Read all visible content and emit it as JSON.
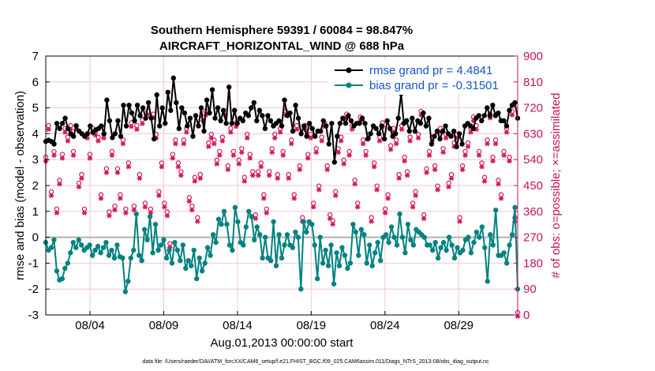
{
  "chart_data": {
    "type": "line",
    "title": "Southern Hemisphere 59391 / 60084 = 98.847%",
    "subtitle": "AIRCRAFT_HORIZONTAL_WIND @ 688 hPa",
    "xlabel": "Aug.01,2013 00:00:00 start",
    "ylabel": "rmse and bias (model - observation)",
    "y2label": "# of obs: o=possible; ×=assimilated",
    "footnote": "data file: /Users/raeder/DAI/ATM_forcXX/CAM6_setup/f.e21.FHIST_BGC.f09_025.CAM6assim.011/Diags_NTrS_2013-08/obs_diag_output.nc",
    "xlim": [
      1,
      33
    ],
    "ylim": [
      -3,
      7
    ],
    "y2lim": [
      0,
      900
    ],
    "x_ticks": [
      4,
      9,
      14,
      19,
      24,
      29
    ],
    "x_tick_labels": [
      "08/04",
      "08/09",
      "08/14",
      "08/19",
      "08/24",
      "08/29"
    ],
    "y_ticks": [
      -3,
      -2,
      -1,
      0,
      1,
      2,
      3,
      4,
      5,
      6,
      7
    ],
    "y2_ticks": [
      0,
      90,
      180,
      270,
      360,
      450,
      540,
      630,
      720,
      810,
      900
    ],
    "grid": true,
    "legend_position": "top-right",
    "colors": {
      "rmse": "#000000",
      "bias": "#00827f",
      "obs": "#d4145a",
      "zero_line": "#b0b0b0",
      "grid": "#f2c8d0",
      "axis2": "#c4145a",
      "legend_text": "#1155cc"
    },
    "series": [
      {
        "name": "rmse grand pr = 4.4841",
        "values": [
          3.7,
          3.75,
          3.7,
          3.6,
          4.4,
          4.2,
          4.4,
          4.6,
          4.2,
          4.0,
          3.9,
          4.3,
          4.1,
          4.0,
          3.9,
          4.0,
          4.3,
          4.05,
          4.15,
          4.2,
          4.3,
          4.0,
          5.3,
          4.5,
          3.85,
          4.0,
          4.5,
          3.9,
          5.1,
          4.3,
          5.1,
          4.8,
          4.5,
          5.1,
          4.7,
          5.0,
          4.6,
          5.2,
          4.6,
          3.8,
          5.5,
          4.3,
          5.0,
          4.4,
          5.6,
          4.9,
          6.15,
          5.2,
          4.2,
          5.0,
          4.8,
          4.3,
          4.6,
          3.9,
          4.7,
          4.3,
          5.0,
          4.1,
          5.3,
          4.8,
          5.7,
          4.6,
          5.0,
          4.5,
          4.9,
          4.4,
          5.8,
          4.4,
          4.9,
          4.4,
          4.6,
          4.5,
          4.8,
          4.7,
          5.0,
          5.2,
          4.5,
          4.9,
          4.7,
          4.2,
          4.7,
          4.5,
          4.3,
          4.4,
          4.5,
          4.3,
          5.3,
          4.7,
          4.8,
          4.1,
          5.1,
          4.6,
          4.0,
          4.3,
          3.9,
          4.4,
          4.2,
          3.9,
          4.1,
          4.1,
          4.5,
          4.3,
          3.6,
          4.4,
          2.9,
          3.9,
          4.4,
          4.6,
          4.4,
          4.7,
          4.5,
          4.3,
          4.4,
          4.4,
          4.6,
          4.4,
          3.8,
          4.0,
          4.3,
          4.2,
          4.0,
          4.3,
          3.8,
          4.5,
          4.2,
          3.9,
          4.0,
          4.6,
          5.55,
          4.4,
          4.5,
          4.1,
          4.6,
          4.1,
          4.5,
          4.4,
          4.8,
          4.3,
          4.6,
          3.6,
          3.9,
          4.1,
          3.8,
          4.1,
          4.3,
          4.0,
          3.9,
          4.1,
          3.5,
          4.0,
          3.6,
          4.3,
          4.4,
          4.3,
          4.2,
          4.6,
          4.7,
          4.5,
          4.7,
          5.0,
          4.7,
          5.1,
          4.7,
          4.8,
          4.5,
          4.5,
          4.3,
          4.9,
          5.1,
          5.2,
          4.6
        ]
      },
      {
        "name": "bias grand pr = -0.31501",
        "values": [
          -0.2,
          -0.5,
          -0.4,
          -0.1,
          -1.3,
          -1.65,
          -1.6,
          -1.2,
          -1.0,
          -0.6,
          -0.2,
          -0.4,
          -0.1,
          -0.3,
          -0.5,
          -0.4,
          -0.3,
          -0.7,
          -0.5,
          -0.35,
          -0.6,
          -0.4,
          -0.2,
          -0.7,
          -0.5,
          -0.8,
          -0.3,
          -0.75,
          -0.8,
          -2.1,
          -1.7,
          -0.8,
          -0.5,
          0.9,
          -0.7,
          -0.9,
          0.3,
          -0.1,
          0.8,
          -0.6,
          0.5,
          -0.5,
          -0.3,
          -0.1,
          -0.8,
          -0.5,
          -1.0,
          -0.2,
          -0.5,
          -0.9,
          -0.3,
          -1.2,
          -0.9,
          -1.1,
          -0.5,
          -1.6,
          -0.8,
          -1.3,
          -1.0,
          -0.4,
          -0.7,
          0.1,
          -0.2,
          0.7,
          0.5,
          1.0,
          0.5,
          -0.3,
          -0.5,
          1.15,
          0.6,
          -0.2,
          -0.3,
          0.4,
          1.0,
          0.8,
          -0.1,
          0.4,
          0.1,
          -0.8,
          0.0,
          -0.8,
          -0.9,
          0.6,
          -1.1,
          0.1,
          -0.8,
          -0.3,
          0.1,
          -0.3,
          -0.4,
          0.2,
          0.0,
          -2.0,
          0.6,
          0.2,
          0.6,
          0.5,
          -0.3,
          -1.6,
          0.0,
          -1.0,
          -0.5,
          -1.1,
          -0.3,
          -1.8,
          -0.6,
          -1.1,
          -0.4,
          -0.7,
          -1.2,
          -1.0,
          0.5,
          0.2,
          -0.7,
          0.3,
          0.1,
          -1.0,
          -0.3,
          -1.1,
          -0.6,
          -0.2,
          -0.9,
          0.0,
          0.1,
          -0.2,
          0.4,
          0.0,
          -0.3,
          0.9,
          0.0,
          -0.6,
          0.5,
          -0.1,
          -0.3,
          0.3,
          0.2,
          0.1,
          0.0,
          -0.3,
          -0.3,
          -0.5,
          -0.2,
          -0.8,
          -0.4,
          -0.2,
          -0.5,
          0.0,
          -0.3,
          -0.8,
          -0.4,
          -0.6,
          -0.5,
          -0.1,
          0.0,
          -0.6,
          -0.2,
          0.2,
          0.0,
          0.4,
          -0.4,
          -1.7,
          0.1,
          -0.3,
          1.05,
          -0.7,
          -0.7,
          -0.6,
          -1.0,
          -0.3,
          0.1,
          1.15,
          -2.0
        ]
      }
    ],
    "obs_possible_values": [
      540,
      650,
      420,
      560,
      360,
      460,
      550,
      640,
      610,
      650,
      560,
      650,
      450,
      480,
      360,
      620,
      550,
      640,
      630,
      610,
      410,
      620,
      500,
      350,
      560,
      370,
      500,
      410,
      600,
      360,
      520,
      660,
      370,
      650,
      480,
      670,
      380,
      700,
      360,
      690,
      620,
      420,
      520,
      380,
      350,
      240,
      550,
      600,
      520,
      490,
      600,
      640,
      400,
      370,
      470,
      330,
      480,
      680,
      700,
      590,
      620,
      600,
      530,
      560,
      610,
      700,
      510,
      640,
      560,
      660,
      530,
      570,
      470,
      620,
      550,
      490,
      340,
      490,
      520,
      410,
      360,
      490,
      570,
      620,
      480,
      640,
      560,
      700,
      480,
      600,
      410,
      650,
      510,
      330,
      650,
      550,
      620,
      380,
      570,
      440,
      610,
      660,
      510,
      340,
      320,
      420,
      570,
      610,
      530,
      690,
      560,
      650,
      460,
      380,
      680,
      600,
      560,
      620,
      330,
      520,
      440,
      610,
      660,
      360,
      410,
      580,
      640,
      600,
      480,
      650,
      540,
      490,
      610,
      380,
      420,
      620,
      700,
      340,
      500,
      560,
      610,
      510,
      440,
      640,
      570,
      620,
      450,
      480,
      590,
      620,
      330,
      510,
      560,
      590,
      640,
      680,
      650,
      560,
      520,
      470,
      600,
      690,
      540,
      600,
      460,
      410,
      560,
      640,
      540,
      700,
      330,
      0
    ],
    "obs_assimilated_values": [
      540,
      650,
      420,
      560,
      360,
      460,
      550,
      640,
      610,
      650,
      560,
      650,
      450,
      480,
      360,
      620,
      550,
      640,
      630,
      610,
      410,
      620,
      500,
      350,
      560,
      370,
      500,
      410,
      600,
      360,
      520,
      660,
      370,
      650,
      480,
      670,
      380,
      700,
      360,
      690,
      620,
      420,
      520,
      380,
      350,
      240,
      550,
      600,
      520,
      490,
      600,
      640,
      400,
      370,
      470,
      330,
      480,
      680,
      700,
      590,
      620,
      600,
      530,
      560,
      610,
      700,
      510,
      640,
      560,
      660,
      530,
      570,
      470,
      620,
      550,
      490,
      340,
      490,
      520,
      410,
      360,
      490,
      570,
      620,
      480,
      640,
      560,
      700,
      480,
      600,
      410,
      650,
      510,
      330,
      650,
      550,
      620,
      380,
      570,
      440,
      610,
      660,
      510,
      340,
      320,
      420,
      570,
      610,
      530,
      690,
      560,
      650,
      460,
      380,
      680,
      600,
      560,
      620,
      330,
      520,
      440,
      610,
      660,
      360,
      410,
      580,
      640,
      600,
      480,
      650,
      540,
      490,
      610,
      380,
      420,
      620,
      700,
      340,
      500,
      560,
      610,
      510,
      440,
      640,
      570,
      620,
      450,
      480,
      590,
      620,
      330,
      510,
      560,
      590,
      640,
      680,
      650,
      560,
      520,
      470,
      600,
      690,
      540,
      600,
      460,
      410,
      560,
      640,
      540,
      700,
      330,
      0
    ]
  }
}
